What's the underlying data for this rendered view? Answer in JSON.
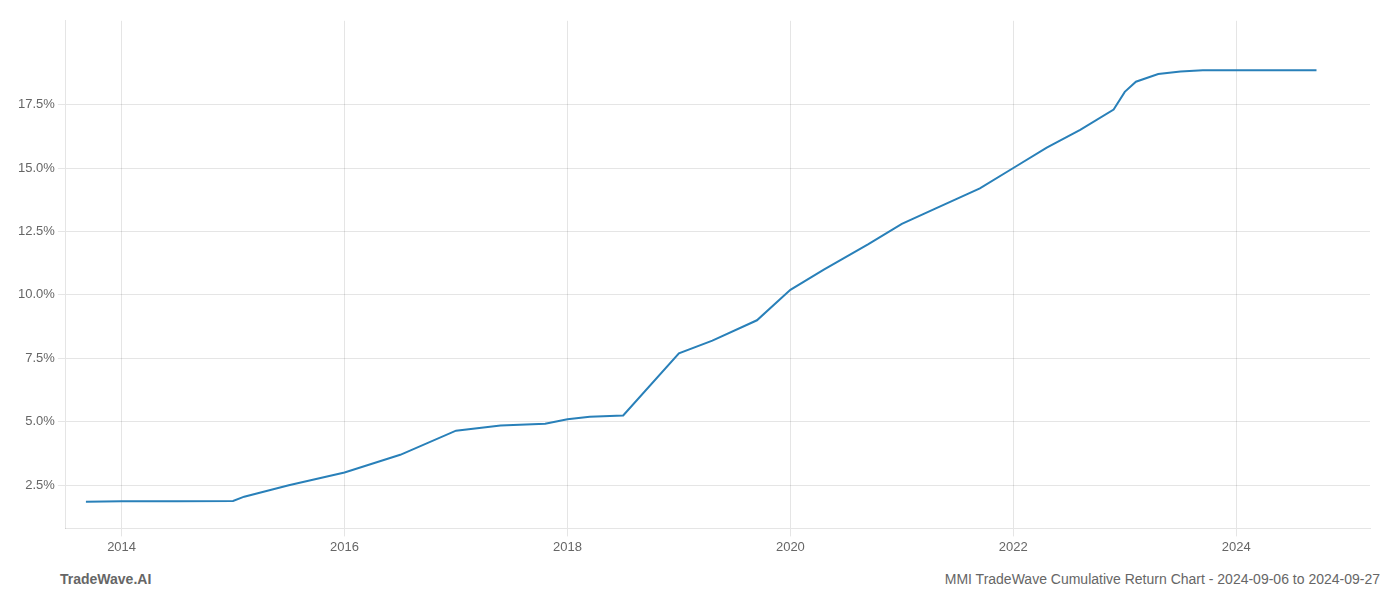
{
  "chart_data": {
    "type": "line",
    "x": [
      2013.68,
      2014.0,
      2014.5,
      2015.0,
      2015.1,
      2015.5,
      2016.0,
      2016.5,
      2017.0,
      2017.4,
      2017.8,
      2018.0,
      2018.2,
      2018.5,
      2019.0,
      2019.3,
      2019.7,
      2020.0,
      2020.3,
      2020.7,
      2021.0,
      2021.3,
      2021.7,
      2022.0,
      2022.3,
      2022.6,
      2022.9,
      2023.0,
      2023.1,
      2023.3,
      2023.5,
      2023.7,
      2024.0,
      2024.3,
      2024.72
    ],
    "values": [
      1.85,
      1.87,
      1.87,
      1.88,
      2.05,
      2.5,
      3.0,
      3.7,
      4.65,
      4.85,
      4.92,
      5.1,
      5.2,
      5.25,
      7.7,
      8.2,
      9.0,
      10.2,
      11.0,
      12.0,
      12.8,
      13.4,
      14.2,
      15.0,
      15.8,
      16.5,
      17.3,
      18.0,
      18.4,
      18.7,
      18.8,
      18.85,
      18.85,
      18.85,
      18.85
    ],
    "color": "#2980b9",
    "xlim": [
      2013.5,
      2025.2
    ],
    "ylim": [
      0.8,
      20.8
    ],
    "xticks": [
      2014,
      2016,
      2018,
      2020,
      2022,
      2024
    ],
    "yticks": [
      {
        "value": 2.5,
        "label": "2.5%"
      },
      {
        "value": 5.0,
        "label": "5.0%"
      },
      {
        "value": 7.5,
        "label": "7.5%"
      },
      {
        "value": 10.0,
        "label": "10.0%"
      },
      {
        "value": 12.5,
        "label": "12.5%"
      },
      {
        "value": 15.0,
        "label": "15.0%"
      },
      {
        "value": 17.5,
        "label": "17.5%"
      }
    ],
    "grid": true,
    "annotations": [
      "TradeWave.AI",
      "MMI TradeWave Cumulative Return Chart - 2024-09-06 to 2024-09-27"
    ]
  }
}
